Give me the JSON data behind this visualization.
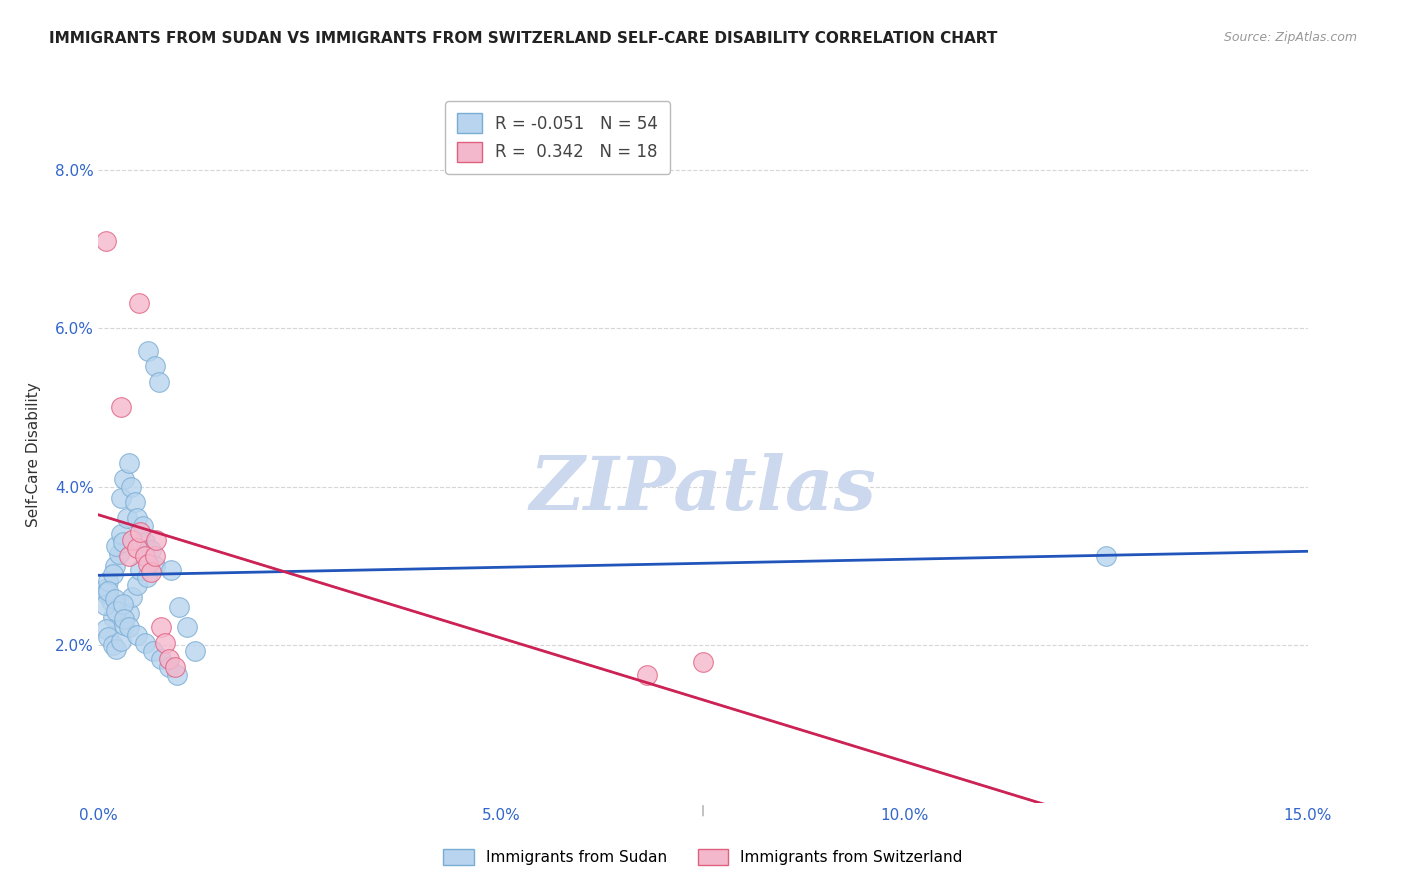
{
  "title": "IMMIGRANTS FROM SUDAN VS IMMIGRANTS FROM SWITZERLAND SELF-CARE DISABILITY CORRELATION CHART",
  "source": "Source: ZipAtlas.com",
  "ylabel": "Self-Care Disability",
  "xlim": [
    0.0,
    0.15
  ],
  "ylim": [
    0.0,
    0.088
  ],
  "xticks": [
    0.0,
    0.05,
    0.1,
    0.15
  ],
  "xtick_labels": [
    "0.0%",
    "5.0%",
    "10.0%",
    "15.0%"
  ],
  "yticks": [
    0.02,
    0.04,
    0.06,
    0.08
  ],
  "ytick_labels": [
    "2.0%",
    "4.0%",
    "6.0%",
    "8.0%"
  ],
  "sudan_color": "#b8d4ee",
  "switzerland_color": "#f4b8cc",
  "sudan_edge_color": "#7aadd4",
  "switzerland_edge_color": "#e06080",
  "trend_sudan_color": "#2255bb",
  "trend_switzerland_color": "#cc2255",
  "trend_ext_color": "#c8a8b0",
  "background_color": "#ffffff",
  "grid_color": "#cccccc",
  "watermark": "ZIPatlas",
  "watermark_color": "#ccd8ee",
  "sudan_points": [
    [
      0.0008,
      0.027
    ],
    [
      0.0015,
      0.0255
    ],
    [
      0.0018,
      0.0235
    ],
    [
      0.001,
      0.0265
    ],
    [
      0.0012,
      0.028
    ],
    [
      0.002,
      0.03
    ],
    [
      0.0025,
      0.0315
    ],
    [
      0.0018,
      0.029
    ],
    [
      0.0022,
      0.0325
    ],
    [
      0.0028,
      0.034
    ],
    [
      0.003,
      0.033
    ],
    [
      0.0035,
      0.036
    ],
    [
      0.0028,
      0.0385
    ],
    [
      0.0032,
      0.041
    ],
    [
      0.0038,
      0.043
    ],
    [
      0.004,
      0.04
    ],
    [
      0.0045,
      0.038
    ],
    [
      0.0048,
      0.036
    ],
    [
      0.0055,
      0.035
    ],
    [
      0.0058,
      0.033
    ],
    [
      0.0065,
      0.032
    ],
    [
      0.007,
      0.03
    ],
    [
      0.001,
      0.022
    ],
    [
      0.0012,
      0.021
    ],
    [
      0.0018,
      0.02
    ],
    [
      0.0022,
      0.0195
    ],
    [
      0.0028,
      0.0205
    ],
    [
      0.0032,
      0.0225
    ],
    [
      0.0038,
      0.024
    ],
    [
      0.0042,
      0.026
    ],
    [
      0.0048,
      0.0275
    ],
    [
      0.0052,
      0.0295
    ],
    [
      0.006,
      0.0285
    ],
    [
      0.0008,
      0.025
    ],
    [
      0.0012,
      0.0268
    ],
    [
      0.002,
      0.0258
    ],
    [
      0.0022,
      0.0242
    ],
    [
      0.003,
      0.0252
    ],
    [
      0.0032,
      0.0232
    ],
    [
      0.0038,
      0.0222
    ],
    [
      0.0048,
      0.0212
    ],
    [
      0.0058,
      0.0202
    ],
    [
      0.0068,
      0.0192
    ],
    [
      0.0078,
      0.0182
    ],
    [
      0.0088,
      0.0172
    ],
    [
      0.0098,
      0.0162
    ],
    [
      0.0062,
      0.0572
    ],
    [
      0.007,
      0.0552
    ],
    [
      0.0075,
      0.0532
    ],
    [
      0.009,
      0.0295
    ],
    [
      0.01,
      0.0248
    ],
    [
      0.011,
      0.0222
    ],
    [
      0.012,
      0.0192
    ],
    [
      0.125,
      0.0312
    ]
  ],
  "switzerland_points": [
    [
      0.001,
      0.071
    ],
    [
      0.0028,
      0.05
    ],
    [
      0.0038,
      0.0312
    ],
    [
      0.0042,
      0.0332
    ],
    [
      0.0048,
      0.0322
    ],
    [
      0.0052,
      0.0342
    ],
    [
      0.005,
      0.0632
    ],
    [
      0.0058,
      0.0312
    ],
    [
      0.0062,
      0.0302
    ],
    [
      0.0065,
      0.0292
    ],
    [
      0.007,
      0.0312
    ],
    [
      0.0072,
      0.0332
    ],
    [
      0.0078,
      0.0222
    ],
    [
      0.0082,
      0.0202
    ],
    [
      0.0088,
      0.0182
    ],
    [
      0.0095,
      0.0172
    ],
    [
      0.075,
      0.0178
    ],
    [
      0.068,
      0.0162
    ]
  ]
}
